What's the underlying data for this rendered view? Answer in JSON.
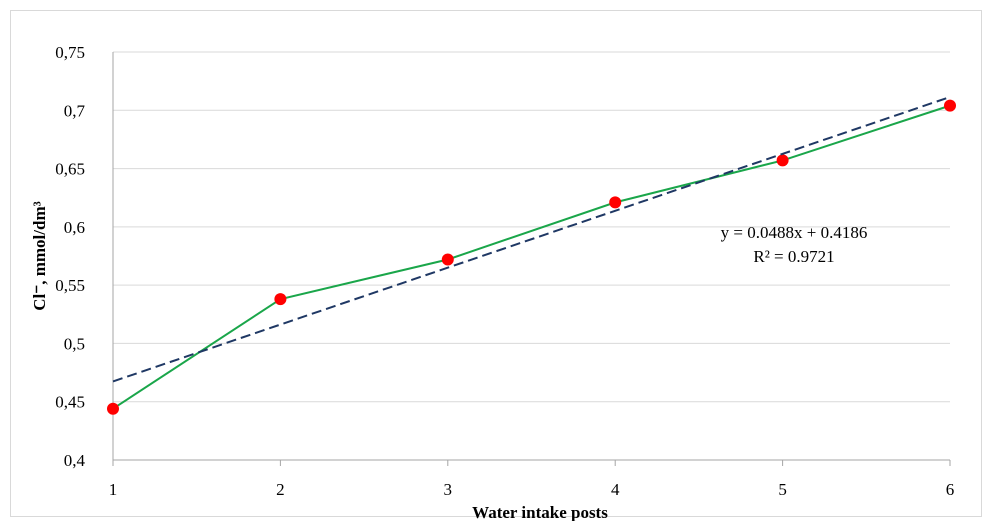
{
  "chart_data": {
    "type": "line",
    "title": "",
    "xlabel": "Water intake posts",
    "ylabel": "Cl⁻, mmol/dm³",
    "x": [
      1,
      2,
      3,
      4,
      5,
      6
    ],
    "series": [
      {
        "values": [
          0.444,
          0.538,
          0.572,
          0.621,
          0.657,
          0.704
        ],
        "color": "#1aa64a",
        "marker_color": "#ff0000"
      }
    ],
    "trendline": {
      "slope": 0.0488,
      "intercept": 0.4186,
      "equation": "y = 0.0488x + 0.4186",
      "r2": "R² = 0.9721",
      "color": "#1f3864",
      "style": "dashed"
    },
    "ylim": [
      0.4,
      0.75
    ],
    "xlim": [
      1,
      6
    ],
    "y_ticks": [
      "0,4",
      "0,45",
      "0,5",
      "0,55",
      "0,6",
      "0,65",
      "0,7",
      "0,75"
    ],
    "x_ticks": [
      "1",
      "2",
      "3",
      "4",
      "5",
      "6"
    ],
    "grid": true,
    "legend": "none"
  }
}
